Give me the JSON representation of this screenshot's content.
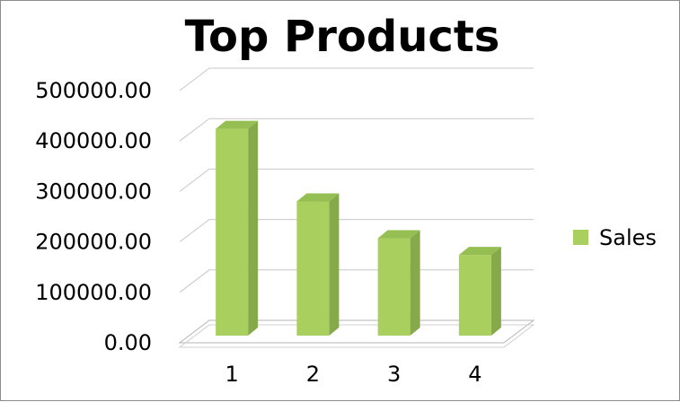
{
  "chart_data": {
    "type": "bar",
    "title": "Top Products",
    "categories": [
      "1",
      "2",
      "3",
      "4"
    ],
    "series": [
      {
        "name": "Sales",
        "values": [
          410000,
          266000,
          193000,
          160000
        ]
      }
    ],
    "ylim": [
      0,
      500000
    ],
    "yticks": [
      "0.00",
      "100000.00",
      "200000.00",
      "300000.00",
      "400000.00",
      "500000.00"
    ],
    "xlabel": "",
    "ylabel": "",
    "grid": true,
    "legend_position": "right",
    "style_3d": true,
    "colors": {
      "bar_front": "#a9cf5f",
      "bar_side": "#86a94a",
      "bar_top": "#95bf52",
      "grid": "#c8c8c8",
      "text": "#000000"
    }
  }
}
